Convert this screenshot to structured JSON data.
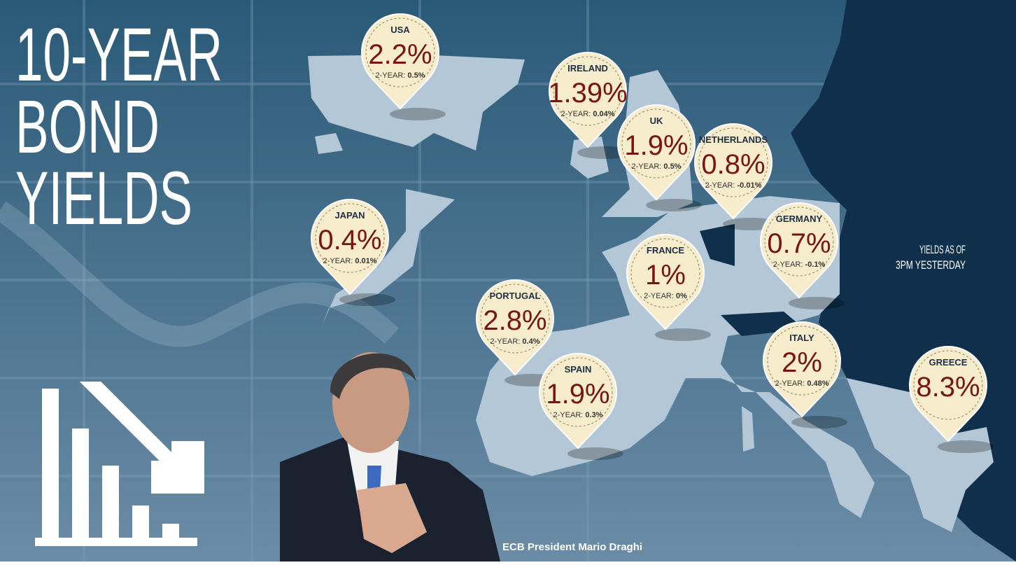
{
  "header": {
    "title_lines": [
      "10-YEAR",
      "BOND",
      "YIELDS"
    ]
  },
  "note_lines": [
    "YIELDS AS OF",
    "3PM YESTERDAY"
  ],
  "caption": "ECB President Mario Draghi",
  "markers": [
    {
      "country": "USA",
      "yield_10": "2.2%",
      "label_2": "2-YEAR:",
      "yield_2": "0.5%"
    },
    {
      "country": "IRELAND",
      "yield_10": "1.39%",
      "label_2": "2-YEAR:",
      "yield_2": "0.04%"
    },
    {
      "country": "UK",
      "yield_10": "1.9%",
      "label_2": "2-YEAR:",
      "yield_2": "0.5%"
    },
    {
      "country": "NETHERLANDS",
      "yield_10": "0.8%",
      "label_2": "2-YEAR:",
      "yield_2": "-0.01%"
    },
    {
      "country": "JAPAN",
      "yield_10": "0.4%",
      "label_2": "2-YEAR:",
      "yield_2": "0.01%"
    },
    {
      "country": "GERMANY",
      "yield_10": "0.7%",
      "label_2": "2-YEAR:",
      "yield_2": "-0.1%"
    },
    {
      "country": "FRANCE",
      "yield_10": "1%",
      "label_2": "2-YEAR:",
      "yield_2": "0%"
    },
    {
      "country": "PORTUGAL",
      "yield_10": "2.8%",
      "label_2": "2-YEAR:",
      "yield_2": "0.4%"
    },
    {
      "country": "SPAIN",
      "yield_10": "1.9%",
      "label_2": "2-YEAR:",
      "yield_2": "0.3%"
    },
    {
      "country": "ITALY",
      "yield_10": "2%",
      "label_2": "2-YEAR:",
      "yield_2": "0.48%"
    },
    {
      "country": "GREECE",
      "yield_10": "8.3%"
    }
  ]
}
